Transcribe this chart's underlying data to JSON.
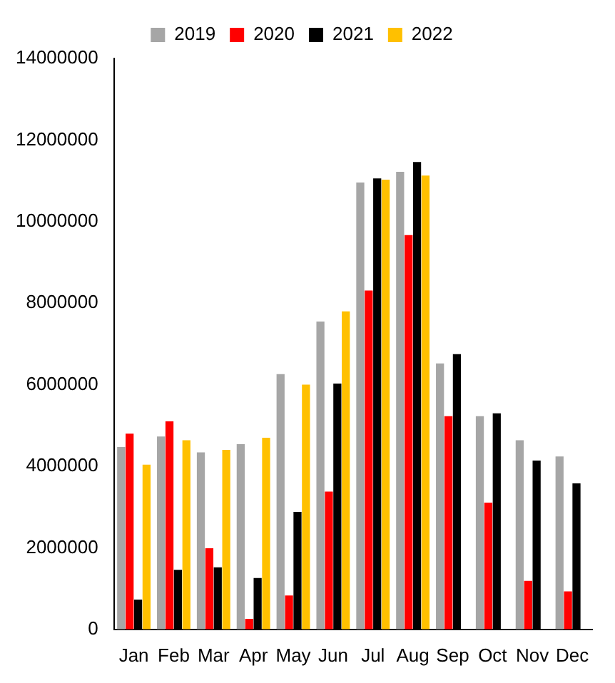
{
  "chart_data": {
    "type": "bar",
    "categories": [
      "Jan",
      "Feb",
      "Mar",
      "Apr",
      "May",
      "Jun",
      "Jul",
      "Aug",
      "Sep",
      "Oct",
      "Nov",
      "Dec"
    ],
    "series": [
      {
        "name": "2019",
        "color": "#a6a6a6",
        "values": [
          4470000,
          4730000,
          4340000,
          4540000,
          6260000,
          7550000,
          10960000,
          11220000,
          6520000,
          5230000,
          4640000,
          4240000
        ]
      },
      {
        "name": "2020",
        "color": "#ff0000",
        "values": [
          4800000,
          5100000,
          1990000,
          260000,
          830000,
          3380000,
          8310000,
          9670000,
          5230000,
          3110000,
          1190000,
          930000
        ]
      },
      {
        "name": "2021",
        "color": "#000000",
        "values": [
          730000,
          1460000,
          1520000,
          1260000,
          2880000,
          6030000,
          11060000,
          11460000,
          6750000,
          5300000,
          4140000,
          3580000
        ]
      },
      {
        "name": "2022",
        "color": "#ffc000",
        "values": [
          4040000,
          4640000,
          4400000,
          4700000,
          6000000,
          7800000,
          11030000,
          11130000,
          null,
          null,
          null,
          null
        ]
      }
    ],
    "ylim": [
      0,
      14000000
    ],
    "yticks": [
      0,
      2000000,
      4000000,
      6000000,
      8000000,
      10000000,
      12000000,
      14000000
    ],
    "grid": false,
    "legend": "top"
  }
}
